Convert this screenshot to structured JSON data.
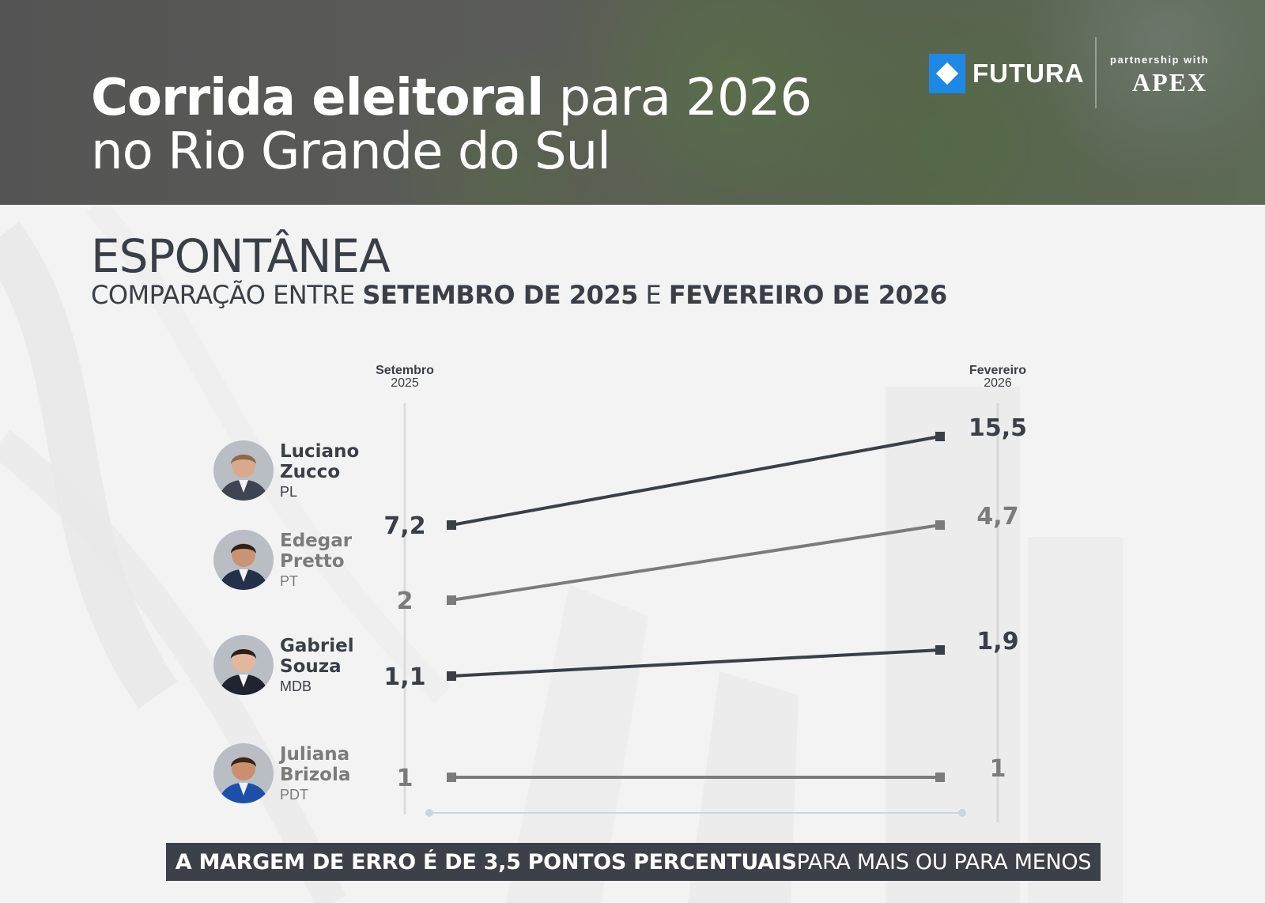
{
  "header": {
    "title_bold": "Corrida eleitoral",
    "title_rest": " para 2026",
    "title_line2": "no Rio Grande do Sul",
    "logo_name": "FUTURA",
    "partner_label": "partnership with",
    "partner_name": "APEX"
  },
  "subtitle": {
    "heading": "ESPONTÂNEA",
    "compare_prefix": "COMPARAÇÃO ENTRE ",
    "period_1": "SETEMBRO DE 2025",
    "connector": " E ",
    "period_2": "FEVEREIRO DE 2026"
  },
  "chart_data": {
    "type": "line",
    "title": "ESPONTÂNEA",
    "x": [
      "Setembro 2025",
      "Fevereiro 2026"
    ],
    "x_labels": [
      {
        "month": "Setembro",
        "year": "2025"
      },
      {
        "month": "Fevereiro",
        "year": "2026"
      }
    ],
    "series": [
      {
        "name": "Luciano Zucco",
        "first": "Luciano",
        "last": "Zucco",
        "party": "PL",
        "values": [
          7.2,
          15.5
        ],
        "labels": [
          "7,2",
          "15,5"
        ],
        "color": "#3a3f47"
      },
      {
        "name": "Edegar Pretto",
        "first": "Edegar",
        "last": "Pretto",
        "party": "PT",
        "values": [
          2,
          4.7
        ],
        "labels": [
          "2",
          "4,7"
        ],
        "color": "#7b7b7b"
      },
      {
        "name": "Gabriel Souza",
        "first": "Gabriel",
        "last": "Souza",
        "party": "MDB",
        "values": [
          1.1,
          1.9
        ],
        "labels": [
          "1,1",
          "1,9"
        ],
        "color": "#3a3f47"
      },
      {
        "name": "Juliana Brizola",
        "first": "Juliana",
        "last": "Brizola",
        "party": "PDT",
        "values": [
          1,
          1
        ],
        "labels": [
          "1",
          "1"
        ],
        "color": "#7b7b7b"
      }
    ],
    "xlabel": "",
    "ylabel": "",
    "grid": false
  },
  "footer": {
    "bold": "A MARGEM DE ERRO É DE 3,5 PONTOS PERCENTUAIS",
    "rest": " PARA MAIS OU PARA MENOS"
  }
}
